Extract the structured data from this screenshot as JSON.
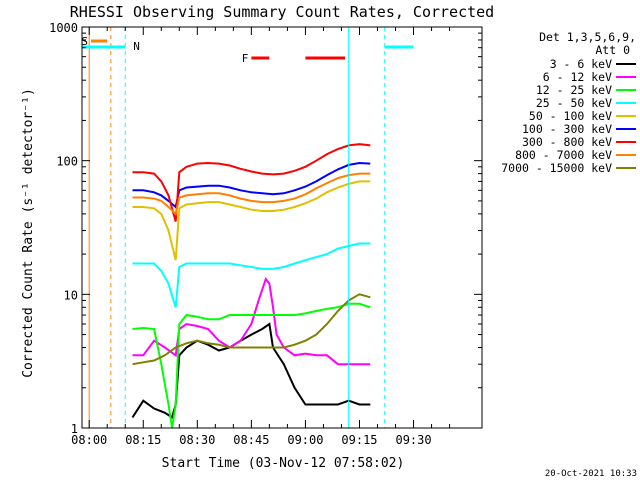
{
  "chart_data": {
    "type": "line",
    "title": "RHESSI Observing Summary Count Rates, Corrected",
    "xlabel": "Start Time (03-Nov-12 07:58:02)",
    "ylabel": "Corrected Count Rate (s⁻¹ detector⁻¹)",
    "x_range_min": [
      -2,
      109
    ],
    "x_tick_labels": [
      "08:00",
      "08:15",
      "08:30",
      "08:45",
      "09:00",
      "09:15",
      "09:30"
    ],
    "x_tick_minutes": [
      0,
      15,
      30,
      45,
      60,
      75,
      90
    ],
    "yscale": "log",
    "ylim": [
      1,
      1000
    ],
    "y_tick_labels": [
      "1",
      "10",
      "100",
      "1000"
    ],
    "y_tick_values": [
      1,
      10,
      100,
      1000
    ],
    "legend_position": "right",
    "legend_header": [
      "Det 1,3,5,6,9,",
      "Att 0"
    ],
    "series": [
      {
        "name": "3 - 6 keV",
        "color": "#000000",
        "x": [
          12,
          15,
          18,
          21,
          23,
          24,
          25,
          27,
          30,
          33,
          36,
          39,
          42,
          45,
          48,
          50,
          51,
          54,
          57,
          60,
          63,
          66,
          69,
          72,
          75,
          78
        ],
        "y": [
          1.2,
          1.6,
          1.4,
          1.3,
          1.2,
          1.5,
          3.5,
          4.0,
          4.5,
          4.2,
          3.8,
          4.0,
          4.5,
          5.0,
          5.5,
          6.0,
          4.0,
          3.0,
          2.0,
          1.5,
          1.5,
          1.5,
          1.5,
          1.6,
          1.5,
          1.5
        ]
      },
      {
        "name": "6 - 12 keV",
        "color": "#ff00ff",
        "x": [
          12,
          15,
          18,
          21,
          24,
          25,
          27,
          30,
          33,
          36,
          39,
          42,
          45,
          47,
          49,
          50,
          51,
          52,
          54,
          57,
          60,
          63,
          66,
          69,
          72,
          75,
          78
        ],
        "y": [
          3.5,
          3.5,
          4.5,
          4.0,
          3.5,
          5.5,
          6.0,
          5.8,
          5.5,
          4.5,
          4.0,
          4.5,
          6.0,
          9.0,
          13.0,
          12.0,
          8.0,
          5.0,
          4.0,
          3.5,
          3.6,
          3.5,
          3.5,
          3.0,
          3.0,
          3.0,
          3.0
        ]
      },
      {
        "name": "12 - 25 keV",
        "color": "#00ff00",
        "x": [
          12,
          15,
          18,
          20,
          22,
          23,
          24,
          25,
          27,
          30,
          33,
          36,
          39,
          42,
          45,
          48,
          51,
          54,
          57,
          60,
          63,
          66,
          69,
          72,
          75,
          78
        ],
        "y": [
          5.5,
          5.6,
          5.5,
          3.0,
          1.5,
          1.0,
          1.5,
          6.0,
          7.0,
          6.8,
          6.5,
          6.5,
          7.0,
          7.0,
          7.0,
          7.0,
          7.0,
          7.0,
          7.0,
          7.2,
          7.5,
          7.8,
          8.0,
          8.5,
          8.5,
          8.0
        ]
      },
      {
        "name": "25 - 50 keV",
        "color": "#00ffff",
        "x": [
          12,
          15,
          18,
          20,
          22,
          24,
          25,
          27,
          30,
          33,
          36,
          39,
          42,
          45,
          48,
          51,
          54,
          57,
          60,
          63,
          66,
          69,
          72,
          75,
          78
        ],
        "y": [
          17,
          17,
          17,
          15,
          12,
          8,
          16,
          17,
          17,
          17,
          17,
          17,
          16.5,
          16,
          15.5,
          15.5,
          16,
          17,
          18,
          19,
          20,
          22,
          23,
          24,
          24
        ]
      },
      {
        "name": "50 - 100 keV",
        "color": "#e0c000",
        "x": [
          12,
          15,
          18,
          20,
          22,
          24,
          25,
          27,
          30,
          33,
          36,
          39,
          42,
          45,
          48,
          51,
          54,
          57,
          60,
          63,
          66,
          69,
          72,
          75,
          78
        ],
        "y": [
          45,
          45,
          44,
          40,
          30,
          18,
          44,
          47,
          48,
          49,
          49,
          47,
          45,
          43,
          42,
          42,
          43,
          45,
          48,
          52,
          58,
          63,
          67,
          70,
          70
        ]
      },
      {
        "name": "100 - 300 keV",
        "color": "#0000ff",
        "x": [
          12,
          15,
          18,
          20,
          22,
          24,
          25,
          27,
          30,
          33,
          36,
          39,
          42,
          45,
          48,
          51,
          54,
          57,
          60,
          63,
          66,
          69,
          72,
          75,
          78
        ],
        "y": [
          60,
          60,
          58,
          55,
          50,
          45,
          60,
          63,
          64,
          65,
          65,
          63,
          60,
          58,
          57,
          56,
          57,
          60,
          64,
          70,
          78,
          86,
          93,
          96,
          95
        ]
      },
      {
        "name": "300 - 800 keV",
        "color": "#ff0000",
        "x": [
          12,
          15,
          18,
          20,
          22,
          24,
          25,
          27,
          30,
          33,
          36,
          39,
          42,
          45,
          48,
          51,
          54,
          57,
          60,
          63,
          66,
          69,
          72,
          75,
          78
        ],
        "y": [
          82,
          82,
          80,
          70,
          55,
          35,
          82,
          90,
          95,
          96,
          95,
          92,
          87,
          83,
          80,
          79,
          80,
          84,
          90,
          100,
          112,
          122,
          130,
          133,
          130
        ]
      },
      {
        "name": "800 - 7000 keV",
        "color": "#ff8000",
        "x": [
          12,
          15,
          18,
          20,
          22,
          24,
          25,
          27,
          30,
          33,
          36,
          39,
          42,
          45,
          48,
          51,
          54,
          57,
          60,
          63,
          66,
          69,
          72,
          75,
          78
        ],
        "y": [
          53,
          53,
          52,
          50,
          45,
          40,
          53,
          55,
          56,
          57,
          57,
          55,
          52,
          50,
          49,
          49,
          50,
          52,
          56,
          62,
          68,
          74,
          78,
          80,
          80
        ]
      },
      {
        "name": "7000 - 15000 keV",
        "color": "#808000",
        "x": [
          12,
          15,
          18,
          21,
          24,
          27,
          30,
          33,
          36,
          39,
          42,
          45,
          48,
          51,
          54,
          57,
          60,
          63,
          66,
          69,
          72,
          75,
          78
        ],
        "y": [
          3.0,
          3.1,
          3.2,
          3.5,
          4.0,
          4.3,
          4.5,
          4.3,
          4.2,
          4.0,
          4.0,
          4.0,
          4.0,
          4.0,
          4.0,
          4.2,
          4.5,
          5.0,
          6.0,
          7.5,
          9.0,
          10.0,
          9.5
        ]
      }
    ],
    "annotations": [
      {
        "label": "S",
        "color": "#ff8000",
        "segments": [
          [
            0.5,
            5
          ]
        ]
      },
      {
        "label": "N",
        "color": "#00ffff",
        "segments": [
          [
            -2,
            10
          ],
          [
            82,
            90
          ]
        ]
      },
      {
        "label": "F",
        "color": "#ff0000",
        "segments": [
          [
            45,
            50
          ],
          [
            60,
            71
          ]
        ]
      }
    ],
    "vertical_lines": [
      {
        "x": 0,
        "style": "solid",
        "color": "#ff8000"
      },
      {
        "x": 6,
        "style": "dashed",
        "color": "#ff8000"
      },
      {
        "x": 10,
        "style": "dashed",
        "color": "#00ffff"
      },
      {
        "x": 72,
        "style": "solid",
        "color": "#00ffff"
      },
      {
        "x": 82,
        "style": "dashed",
        "color": "#00ffff"
      }
    ],
    "footer_timestamp": "20-Oct-2021 10:33"
  }
}
